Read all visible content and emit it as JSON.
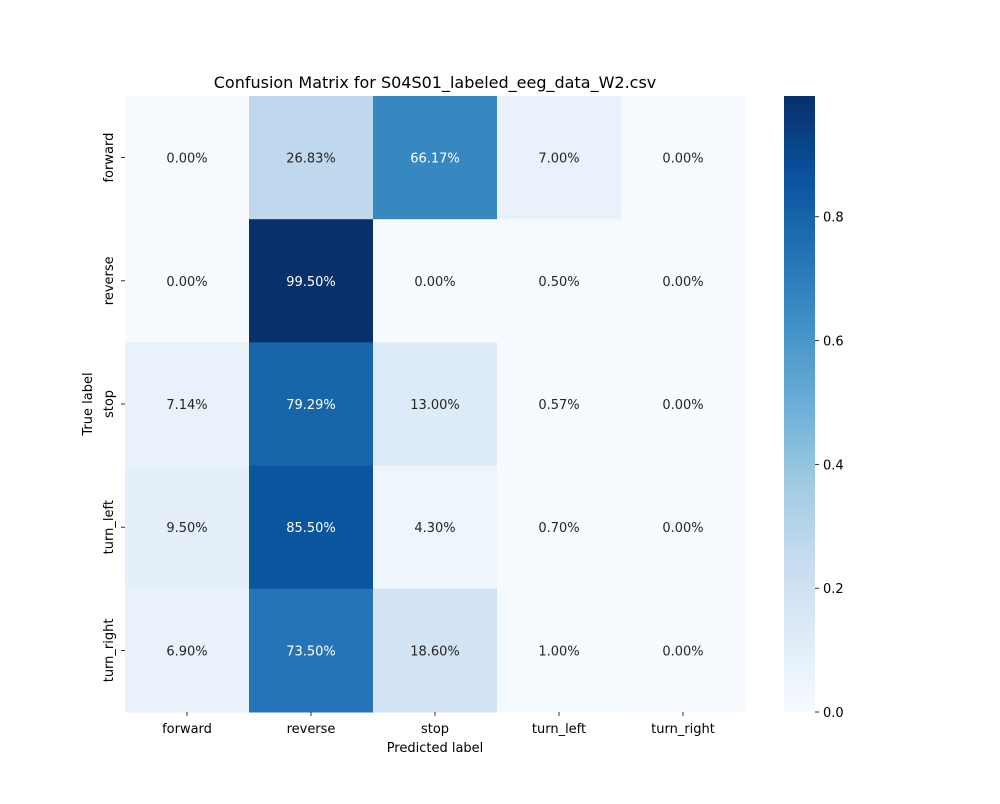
{
  "chart_data": {
    "type": "heatmap",
    "title": "Confusion Matrix for S04S01_labeled_eeg_data_W2.csv",
    "xlabel": "Predicted label",
    "ylabel": "True label",
    "x_categories": [
      "forward",
      "reverse",
      "stop",
      "turn_left",
      "turn_right"
    ],
    "y_categories": [
      "forward",
      "reverse",
      "stop",
      "turn_left",
      "turn_right"
    ],
    "values": [
      [
        0.0,
        0.2683,
        0.6617,
        0.07,
        0.0
      ],
      [
        0.0,
        0.995,
        0.0,
        0.005,
        0.0
      ],
      [
        0.0714,
        0.7929,
        0.13,
        0.0057,
        0.0
      ],
      [
        0.095,
        0.855,
        0.043,
        0.007,
        0.0
      ],
      [
        0.069,
        0.735,
        0.186,
        0.01,
        0.0
      ]
    ],
    "annotations": [
      [
        "0.00%",
        "26.83%",
        "66.17%",
        "7.00%",
        "0.00%"
      ],
      [
        "0.00%",
        "99.50%",
        "0.00%",
        "0.50%",
        "0.00%"
      ],
      [
        "7.14%",
        "79.29%",
        "13.00%",
        "0.57%",
        "0.00%"
      ],
      [
        "9.50%",
        "85.50%",
        "4.30%",
        "0.70%",
        "0.00%"
      ],
      [
        "6.90%",
        "73.50%",
        "18.60%",
        "1.00%",
        "0.00%"
      ]
    ],
    "colormap": "Blues",
    "colormap_stops": [
      "#f7fbff",
      "#deebf7",
      "#c6dbef",
      "#9ecae1",
      "#6baed6",
      "#4292c6",
      "#2171b5",
      "#08519c",
      "#08306b"
    ],
    "vmin": 0.0,
    "vmax": 0.995,
    "colorbar_ticks": [
      "0.0",
      "0.2",
      "0.4",
      "0.6",
      "0.8"
    ],
    "colorbar_tick_values": [
      0,
      0.2,
      0.4,
      0.6,
      0.8
    ],
    "grid": false
  }
}
